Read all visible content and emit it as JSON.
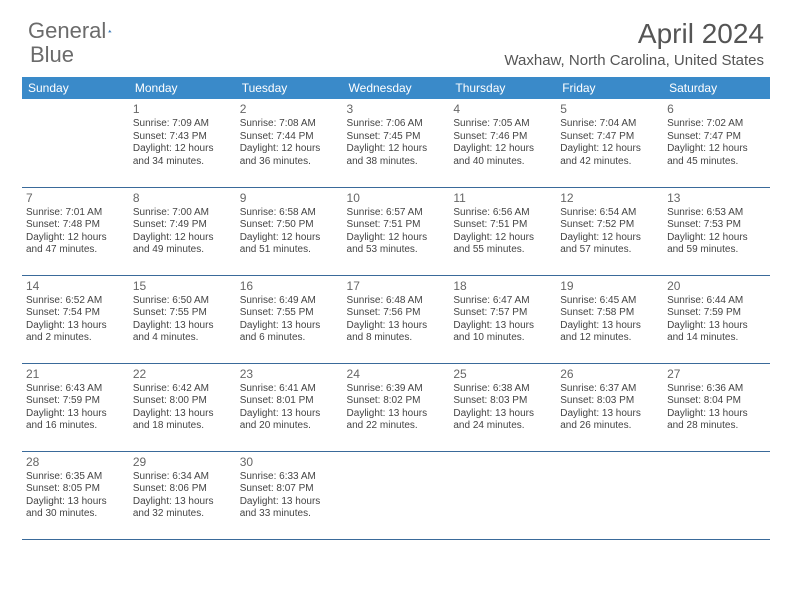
{
  "brand": {
    "part1": "General",
    "part2": "Blue"
  },
  "title": "April 2024",
  "location": "Waxhaw, North Carolina, United States",
  "colors": {
    "header_bg": "#3a8ac9",
    "header_text": "#ffffff",
    "border": "#3a6a9a",
    "title_text": "#555555",
    "body_text": "#444444",
    "logo_text": "#6b6b6b",
    "logo_blue": "#2a6db0"
  },
  "weekdays": [
    "Sunday",
    "Monday",
    "Tuesday",
    "Wednesday",
    "Thursday",
    "Friday",
    "Saturday"
  ],
  "grid": [
    [
      null,
      {
        "n": "1",
        "sr": "7:09 AM",
        "ss": "7:43 PM",
        "dl": "12 hours and 34 minutes."
      },
      {
        "n": "2",
        "sr": "7:08 AM",
        "ss": "7:44 PM",
        "dl": "12 hours and 36 minutes."
      },
      {
        "n": "3",
        "sr": "7:06 AM",
        "ss": "7:45 PM",
        "dl": "12 hours and 38 minutes."
      },
      {
        "n": "4",
        "sr": "7:05 AM",
        "ss": "7:46 PM",
        "dl": "12 hours and 40 minutes."
      },
      {
        "n": "5",
        "sr": "7:04 AM",
        "ss": "7:47 PM",
        "dl": "12 hours and 42 minutes."
      },
      {
        "n": "6",
        "sr": "7:02 AM",
        "ss": "7:47 PM",
        "dl": "12 hours and 45 minutes."
      }
    ],
    [
      {
        "n": "7",
        "sr": "7:01 AM",
        "ss": "7:48 PM",
        "dl": "12 hours and 47 minutes."
      },
      {
        "n": "8",
        "sr": "7:00 AM",
        "ss": "7:49 PM",
        "dl": "12 hours and 49 minutes."
      },
      {
        "n": "9",
        "sr": "6:58 AM",
        "ss": "7:50 PM",
        "dl": "12 hours and 51 minutes."
      },
      {
        "n": "10",
        "sr": "6:57 AM",
        "ss": "7:51 PM",
        "dl": "12 hours and 53 minutes."
      },
      {
        "n": "11",
        "sr": "6:56 AM",
        "ss": "7:51 PM",
        "dl": "12 hours and 55 minutes."
      },
      {
        "n": "12",
        "sr": "6:54 AM",
        "ss": "7:52 PM",
        "dl": "12 hours and 57 minutes."
      },
      {
        "n": "13",
        "sr": "6:53 AM",
        "ss": "7:53 PM",
        "dl": "12 hours and 59 minutes."
      }
    ],
    [
      {
        "n": "14",
        "sr": "6:52 AM",
        "ss": "7:54 PM",
        "dl": "13 hours and 2 minutes."
      },
      {
        "n": "15",
        "sr": "6:50 AM",
        "ss": "7:55 PM",
        "dl": "13 hours and 4 minutes."
      },
      {
        "n": "16",
        "sr": "6:49 AM",
        "ss": "7:55 PM",
        "dl": "13 hours and 6 minutes."
      },
      {
        "n": "17",
        "sr": "6:48 AM",
        "ss": "7:56 PM",
        "dl": "13 hours and 8 minutes."
      },
      {
        "n": "18",
        "sr": "6:47 AM",
        "ss": "7:57 PM",
        "dl": "13 hours and 10 minutes."
      },
      {
        "n": "19",
        "sr": "6:45 AM",
        "ss": "7:58 PM",
        "dl": "13 hours and 12 minutes."
      },
      {
        "n": "20",
        "sr": "6:44 AM",
        "ss": "7:59 PM",
        "dl": "13 hours and 14 minutes."
      }
    ],
    [
      {
        "n": "21",
        "sr": "6:43 AM",
        "ss": "7:59 PM",
        "dl": "13 hours and 16 minutes."
      },
      {
        "n": "22",
        "sr": "6:42 AM",
        "ss": "8:00 PM",
        "dl": "13 hours and 18 minutes."
      },
      {
        "n": "23",
        "sr": "6:41 AM",
        "ss": "8:01 PM",
        "dl": "13 hours and 20 minutes."
      },
      {
        "n": "24",
        "sr": "6:39 AM",
        "ss": "8:02 PM",
        "dl": "13 hours and 22 minutes."
      },
      {
        "n": "25",
        "sr": "6:38 AM",
        "ss": "8:03 PM",
        "dl": "13 hours and 24 minutes."
      },
      {
        "n": "26",
        "sr": "6:37 AM",
        "ss": "8:03 PM",
        "dl": "13 hours and 26 minutes."
      },
      {
        "n": "27",
        "sr": "6:36 AM",
        "ss": "8:04 PM",
        "dl": "13 hours and 28 minutes."
      }
    ],
    [
      {
        "n": "28",
        "sr": "6:35 AM",
        "ss": "8:05 PM",
        "dl": "13 hours and 30 minutes."
      },
      {
        "n": "29",
        "sr": "6:34 AM",
        "ss": "8:06 PM",
        "dl": "13 hours and 32 minutes."
      },
      {
        "n": "30",
        "sr": "6:33 AM",
        "ss": "8:07 PM",
        "dl": "13 hours and 33 minutes."
      },
      null,
      null,
      null,
      null
    ]
  ],
  "labels": {
    "sunrise": "Sunrise:",
    "sunset": "Sunset:",
    "daylight": "Daylight:"
  }
}
